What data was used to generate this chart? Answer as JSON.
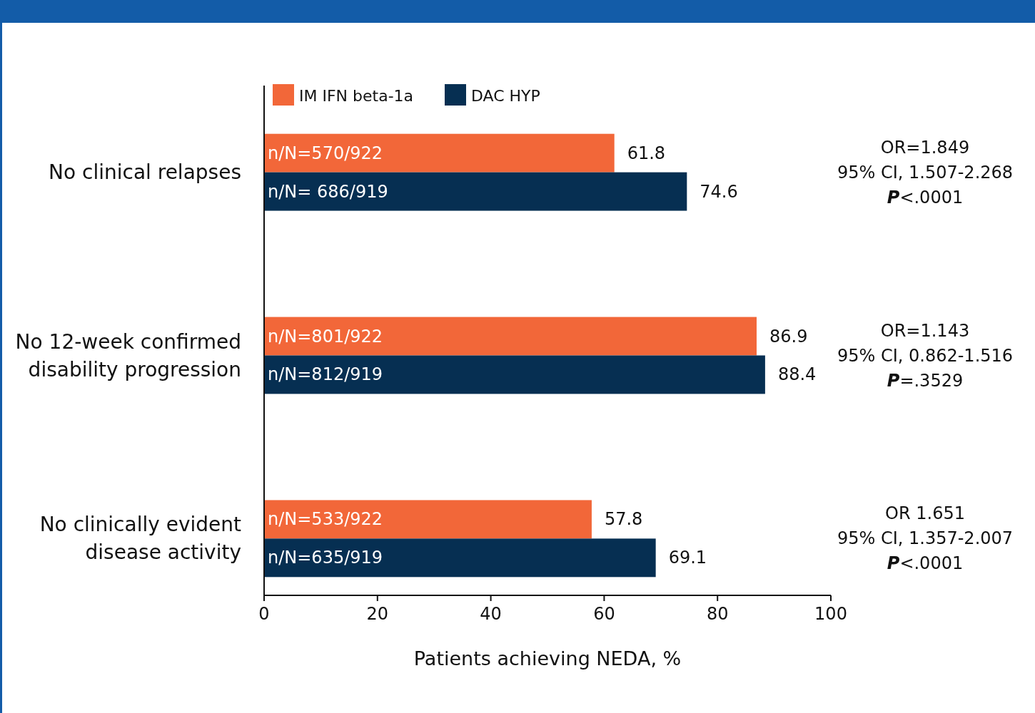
{
  "chart_data": {
    "type": "bar",
    "orientation": "horizontal",
    "xlabel": "Patients achieving NEDA, %",
    "categories": [
      "No clinical relapses",
      "No 12-week confirmed\ndisability progression",
      "No clinically evident\ndisease activity"
    ],
    "series": [
      {
        "name": "IM IFN beta-1a",
        "color": "#f26739",
        "values": [
          61.8,
          86.9,
          57.8
        ]
      },
      {
        "name": "DAC HYP",
        "color": "#062f52",
        "values": [
          74.6,
          88.4,
          69.1
        ]
      }
    ],
    "xlim": [
      0,
      100
    ],
    "xticks": [
      0,
      20,
      40,
      60,
      80,
      100
    ],
    "grid": false,
    "legend": "top left",
    "data_labels": true,
    "annotations": [
      {
        "text": "n/N=570/922",
        "y": "No clinical relapses"
      },
      {
        "text": "n/N= 686/919",
        "y": "No clinical relapses"
      },
      {
        "text": "n/N=801/922",
        "y": "No 12-week confirmed\ndisability progression"
      },
      {
        "text": "n/N=812/919",
        "y": "No 12-week confirmed\ndisability progression"
      },
      {
        "text": "n/N=533/922",
        "y": "No clinically evident\ndisease activity"
      },
      {
        "text": "n/N=635/919",
        "y": "No clinically evident\ndisease activity"
      },
      "OR=1.849\n95% CI, 1.507-2.268\nP<.0001",
      "OR=1.143\n95% CI, 0.862-1.516\nP=.3529",
      "OR 1.651\n95% CI, 1.357-2.007\nP<.0001"
    ]
  }
}
